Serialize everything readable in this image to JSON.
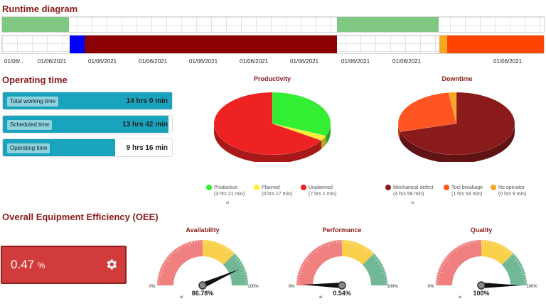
{
  "runtime": {
    "title": "Runtime diagram",
    "ticks": [
      "01/06/...",
      "01/06/2021",
      "01/06/2021",
      "01/06/2021",
      "01/06/2021",
      "01/06/2021",
      "01/06/2021",
      "01/06/2021",
      "01/06/2021",
      "01/06/2021"
    ],
    "colors": {
      "productive": "#80c783",
      "blue": "#0000ff",
      "darkred": "#8b0000",
      "orange": "#f5a623",
      "red_orange": "#ff4400"
    }
  },
  "operating_time": {
    "title": "Operating time",
    "bars": [
      {
        "label": "Total working time",
        "value": "14 hrs 0 min",
        "fill": 1.0
      },
      {
        "label": "Scheduled time",
        "value": "13 hrs 42 min",
        "fill": 0.979
      },
      {
        "label": "Operating time",
        "value": "9 hrs 16 min",
        "fill": 0.662
      }
    ]
  },
  "productivity": {
    "title": "Productivity",
    "legend": [
      {
        "name": "Productive",
        "detail": "(3 hrs 21 min)",
        "color": "#33ee33"
      },
      {
        "name": "Planned",
        "detail": "(0 hrs 17 min)",
        "color": "#ffee33"
      },
      {
        "name": "Unplanned",
        "detail": "(7 hrs 1 min)",
        "color": "#ee2222"
      }
    ],
    "footnote": "al"
  },
  "downtime": {
    "title": "Downtime",
    "legend": [
      {
        "name": "Mechanical defect",
        "detail": "(4 hrs 58 min)",
        "color": "#8b1a1a"
      },
      {
        "name": "Tool breakage",
        "detail": "(1 hrs 54 min)",
        "color": "#ff5522"
      },
      {
        "name": "No operator",
        "detail": "(0 hrs 9 min)",
        "color": "#f5a623"
      }
    ],
    "footnote": "al"
  },
  "chart_data": [
    {
      "type": "pie",
      "title": "Productivity",
      "categories": [
        "Productive",
        "Planned",
        "Unplanned"
      ],
      "values": [
        201,
        17,
        421
      ],
      "colors": [
        "#33ee33",
        "#ffee33",
        "#ee2222"
      ]
    },
    {
      "type": "pie",
      "title": "Downtime",
      "categories": [
        "Mechanical defect",
        "Tool breakage",
        "No operator"
      ],
      "values": [
        298,
        114,
        9
      ],
      "colors": [
        "#8b1a1a",
        "#ff5522",
        "#f5a623"
      ]
    }
  ],
  "oee": {
    "title": "Overall Equipment Efficiency (OEE)",
    "value": "0.47",
    "unit": "%"
  },
  "gauges": [
    {
      "title": "Availability",
      "value_text": "86.78%",
      "value": 86.78,
      "min_label": "0%",
      "max_label": "100%",
      "footnote": "al"
    },
    {
      "title": "Performance",
      "value_text": "0.54%",
      "value": 0.54,
      "min_label": "0%",
      "max_label": "100%",
      "footnote": "al"
    },
    {
      "title": "Quality",
      "value_text": "100%",
      "value": 100,
      "min_label": "0%",
      "max_label": "100%",
      "footnote": "al"
    }
  ]
}
